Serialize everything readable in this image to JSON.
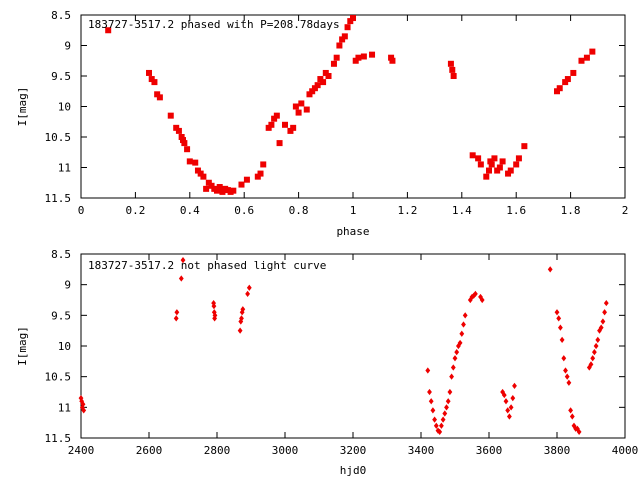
{
  "chart_data": [
    {
      "type": "scatter",
      "title": "183727-3517.2 phased with P=208.78days",
      "xlabel": "phase",
      "ylabel": "I[mag]",
      "xlim": [
        0,
        2
      ],
      "ylim": [
        11.5,
        8.5
      ],
      "y_inverted": true,
      "xticks": [
        "0",
        "0.2",
        "0.4",
        "0.6",
        "0.8",
        "1",
        "1.2",
        "1.4",
        "1.6",
        "1.8",
        "2"
      ],
      "yticks": [
        "8.5",
        "9",
        "9.5",
        "10",
        "10.5",
        "11",
        "11.5"
      ],
      "grid": false,
      "color": "#ee0000",
      "marker": "filled square",
      "x": [
        0.1,
        0.25,
        0.26,
        0.27,
        0.28,
        0.29,
        0.33,
        0.35,
        0.36,
        0.37,
        0.375,
        0.38,
        0.39,
        0.4,
        0.42,
        0.43,
        0.44,
        0.45,
        0.46,
        0.47,
        0.48,
        0.49,
        0.5,
        0.51,
        0.52,
        0.53,
        0.54,
        0.55,
        0.56,
        0.59,
        0.61,
        0.65,
        0.66,
        0.67,
        0.69,
        0.7,
        0.71,
        0.72,
        0.73,
        0.75,
        0.77,
        0.78,
        0.79,
        0.8,
        0.81,
        0.83,
        0.84,
        0.85,
        0.86,
        0.87,
        0.88,
        0.89,
        0.9,
        0.91,
        0.93,
        0.94,
        0.95,
        0.96,
        0.97,
        0.98,
        0.99,
        1.0,
        1.01,
        1.02,
        1.04,
        1.07,
        1.14,
        1.145,
        1.36,
        1.365,
        1.37,
        1.44,
        1.46,
        1.47,
        1.49,
        1.5,
        1.505,
        1.51,
        1.52,
        1.53,
        1.54,
        1.55,
        1.57,
        1.58,
        1.6,
        1.61,
        1.63,
        1.75,
        1.76,
        1.78,
        1.79,
        1.81,
        1.84,
        1.86,
        1.88
      ],
      "y": [
        8.75,
        9.45,
        9.55,
        9.6,
        9.8,
        9.85,
        10.15,
        10.35,
        10.4,
        10.5,
        10.55,
        10.6,
        10.7,
        10.9,
        10.92,
        11.05,
        11.1,
        11.15,
        11.35,
        11.25,
        11.3,
        11.35,
        11.38,
        11.32,
        11.4,
        11.35,
        11.37,
        11.4,
        11.38,
        11.28,
        11.2,
        11.15,
        11.1,
        10.95,
        10.35,
        10.3,
        10.2,
        10.15,
        10.6,
        10.3,
        10.4,
        10.35,
        10.0,
        10.1,
        9.95,
        10.05,
        9.8,
        9.75,
        9.7,
        9.65,
        9.55,
        9.6,
        9.45,
        9.5,
        9.3,
        9.2,
        9.0,
        8.9,
        8.85,
        8.7,
        8.6,
        8.55,
        9.25,
        9.2,
        9.18,
        9.15,
        9.2,
        9.25,
        9.3,
        9.4,
        9.5,
        10.8,
        10.85,
        10.95,
        11.15,
        11.05,
        10.9,
        10.95,
        10.85,
        11.05,
        11.0,
        10.9,
        11.1,
        11.05,
        10.95,
        10.85,
        10.65,
        9.75,
        9.7,
        9.6,
        9.55,
        9.45,
        9.25,
        9.2,
        9.1
      ]
    },
    {
      "type": "scatter",
      "title": "183727-3517.2 not phased light curve",
      "xlabel": "hjd0",
      "ylabel": "I[mag]",
      "xlim": [
        2400,
        4000
      ],
      "ylim": [
        11.5,
        8.5
      ],
      "y_inverted": true,
      "xticks": [
        "2400",
        "2600",
        "2800",
        "3000",
        "3200",
        "3400",
        "3600",
        "3800",
        "4000"
      ],
      "yticks": [
        "8.5",
        "9",
        "9.5",
        "10",
        "10.5",
        "11",
        "11.5"
      ],
      "grid": false,
      "color": "#ee0000",
      "marker": "small diamond",
      "x": [
        2400,
        2402,
        2404,
        2406,
        2408,
        2680,
        2682,
        2695,
        2700,
        2790,
        2791,
        2792,
        2793,
        2794,
        2868,
        2870,
        2872,
        2874,
        2876,
        2890,
        2895,
        3420,
        3425,
        3430,
        3435,
        3440,
        3445,
        3450,
        3455,
        3460,
        3465,
        3470,
        3475,
        3480,
        3485,
        3490,
        3495,
        3500,
        3505,
        3510,
        3515,
        3520,
        3525,
        3530,
        3545,
        3550,
        3555,
        3560,
        3575,
        3580,
        3640,
        3645,
        3650,
        3655,
        3660,
        3665,
        3670,
        3675,
        3780,
        3800,
        3805,
        3810,
        3815,
        3820,
        3825,
        3830,
        3835,
        3840,
        3845,
        3850,
        3855,
        3860,
        3865,
        3895,
        3900,
        3905,
        3910,
        3915,
        3920,
        3925,
        3930,
        3935,
        3940,
        3945
      ],
      "y": [
        10.85,
        10.9,
        11.0,
        10.95,
        11.05,
        9.55,
        9.45,
        8.9,
        8.6,
        9.3,
        9.35,
        9.45,
        9.55,
        9.5,
        9.75,
        9.6,
        9.55,
        9.45,
        9.4,
        9.15,
        9.05,
        10.4,
        10.75,
        10.9,
        11.05,
        11.2,
        11.3,
        11.38,
        11.4,
        11.3,
        11.2,
        11.1,
        11.0,
        10.9,
        10.75,
        10.5,
        10.35,
        10.2,
        10.1,
        10.0,
        9.95,
        9.8,
        9.65,
        9.5,
        9.25,
        9.2,
        9.18,
        9.15,
        9.2,
        9.25,
        10.75,
        10.8,
        10.9,
        11.05,
        11.15,
        11.0,
        10.85,
        10.65,
        8.75,
        9.45,
        9.55,
        9.7,
        9.9,
        10.2,
        10.4,
        10.5,
        10.6,
        11.05,
        11.15,
        11.3,
        11.35,
        11.35,
        11.4,
        10.35,
        10.3,
        10.2,
        10.1,
        10.0,
        9.9,
        9.75,
        9.7,
        9.6,
        9.45,
        9.3
      ]
    }
  ]
}
